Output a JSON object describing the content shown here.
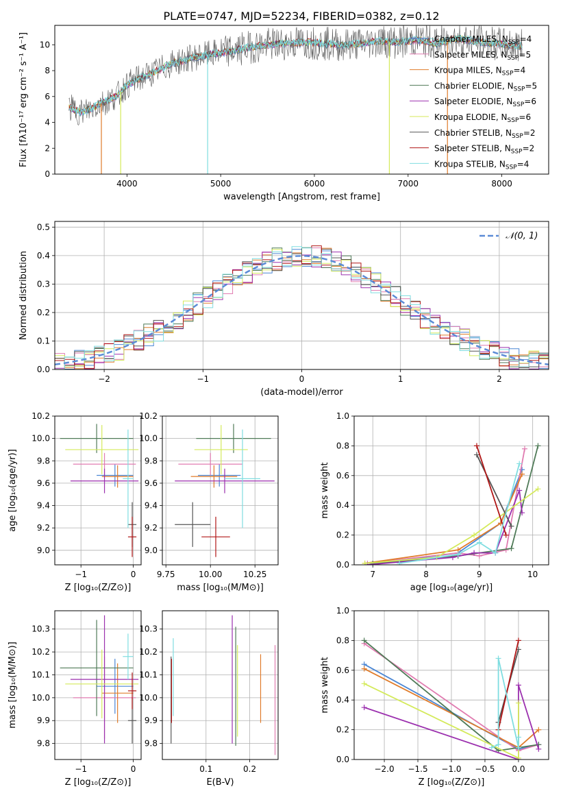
{
  "figure_title": "PLATE=0747, MJD=52234, FIBERID=0382, z=0.12",
  "series_names": [
    "Chabrier MILES",
    "Salpeter MILES",
    "Kroupa MILES",
    "Chabrier ELODIE",
    "Salpeter ELODIE",
    "Kroupa ELODIE",
    "Chabrier STELIB",
    "Salpeter STELIB",
    "Kroupa STELIB"
  ],
  "colors": {
    "Chabrier MILES": "#4a86d4",
    "Salpeter MILES": "#e07bb0",
    "Kroupa MILES": "#e07b2a",
    "Chabrier ELODIE": "#4f7a57",
    "Salpeter ELODIE": "#9b2fae",
    "Kroupa ELODIE": "#d4ea5a",
    "Chabrier STELIB": "#555555",
    "Salpeter STELIB": "#b01515",
    "Kroupa STELIB": "#7fdde0",
    "grid": "#b0b0b0",
    "normal_curve": "#5b8bd6"
  },
  "chart_data": [
    {
      "id": "spectrum",
      "type": "line",
      "xlabel": "wavelength [Angstrom, rest frame]",
      "ylabel": "Flux [fλ10⁻¹⁷ erg cm⁻² s⁻¹ A⁻¹]",
      "xlim": [
        3230,
        8500
      ],
      "ylim": [
        0,
        11.5
      ],
      "xticks": [
        4000,
        5000,
        6000,
        7000,
        8000
      ],
      "yticks": [
        0,
        2,
        4,
        6,
        8,
        10
      ],
      "grid": false,
      "legend_position": "right",
      "legend": [
        {
          "label": "Chabrier MILES, N",
          "sub": "SSP",
          "tail": "=4"
        },
        {
          "label": "Salpeter MILES, N",
          "sub": "SSP",
          "tail": "=5"
        },
        {
          "label": "Kroupa MILES, N",
          "sub": "SSP",
          "tail": "=4"
        },
        {
          "label": "Chabrier ELODIE, N",
          "sub": "SSP",
          "tail": "=5"
        },
        {
          "label": "Salpeter ELODIE, N",
          "sub": "SSP",
          "tail": "=6"
        },
        {
          "label": "Kroupa ELODIE, N",
          "sub": "SSP",
          "tail": "=6"
        },
        {
          "label": "Chabrier STELIB, N",
          "sub": "SSP",
          "tail": "=2"
        },
        {
          "label": "Salpeter STELIB, N",
          "sub": "SSP",
          "tail": "=2"
        },
        {
          "label": "Kroupa STELIB, N",
          "sub": "SSP",
          "tail": "=4"
        }
      ],
      "continuum": {
        "x": [
          3400,
          3500,
          3600,
          3700,
          3800,
          3900,
          4000,
          4100,
          4200,
          4300,
          4400,
          4500,
          4700,
          4900,
          5100,
          5300,
          5500,
          5700,
          5900,
          6100,
          6300,
          6500,
          6700,
          6900,
          7100,
          7300,
          7500,
          7700,
          7900,
          8100,
          8200
        ],
        "y": [
          5.1,
          4.8,
          5.0,
          5.4,
          5.7,
          6.1,
          6.9,
          7.3,
          7.6,
          7.9,
          8.3,
          8.6,
          9.0,
          9.3,
          9.5,
          9.8,
          10.0,
          10.1,
          10.2,
          10.1,
          10.0,
          10.1,
          10.3,
          10.2,
          10.4,
          10.1,
          10.5,
          10.3,
          10.1,
          10.0,
          9.9
        ]
      },
      "spikes": [
        {
          "x": 3727,
          "y": 0
        },
        {
          "x": 3933,
          "y": 0
        },
        {
          "x": 4861,
          "y": 0
        },
        {
          "x": 6800,
          "y": 0
        },
        {
          "x": 7420,
          "y": 0
        }
      ]
    },
    {
      "id": "residuals",
      "type": "histogram",
      "xlabel": "(data-model)/error",
      "ylabel": "Normed distribution",
      "xlim": [
        -2.5,
        2.5
      ],
      "ylim": [
        0,
        0.52
      ],
      "xticks": [
        -2,
        -1,
        0,
        1,
        2
      ],
      "yticks": [
        0.0,
        0.1,
        0.2,
        0.3,
        0.4,
        0.5
      ],
      "grid": true,
      "bin_width": 0.1,
      "bin_start": -2.5,
      "legend": [
        {
          "label": "𝒩(0, 1)",
          "style": "dashed"
        }
      ],
      "legend_position": "top-right"
    },
    {
      "id": "age_vs_Z",
      "type": "errorbar",
      "xlabel": "Z [log₁₀(Z/Z⊙)]",
      "ylabel": "age  [log₁₀(age/yr)]",
      "xlim": [
        -1.5,
        0.15
      ],
      "ylim": [
        8.87,
        10.2
      ],
      "xticks": [
        -1,
        0
      ],
      "yticks": [
        9.0,
        9.2,
        9.4,
        9.6,
        9.8,
        10.0,
        10.2
      ],
      "grid": true,
      "points": [
        {
          "series": "Chabrier MILES",
          "x": -0.35,
          "xerr": 0.35,
          "y": 9.67,
          "yerr": 0.1
        },
        {
          "series": "Salpeter MILES",
          "x": -0.55,
          "xerr": 0.6,
          "y": 9.77,
          "yerr": 0.1
        },
        {
          "series": "Kroupa MILES",
          "x": -0.3,
          "xerr": 0.3,
          "y": 9.66,
          "yerr": 0.1
        },
        {
          "series": "Chabrier ELODIE",
          "x": -0.7,
          "xerr": 0.7,
          "y": 10.0,
          "yerr": 0.13
        },
        {
          "series": "Salpeter ELODIE",
          "x": -0.55,
          "xerr": 0.65,
          "y": 9.62,
          "yerr": 0.11
        },
        {
          "series": "Kroupa ELODIE",
          "x": -0.6,
          "xerr": 0.7,
          "y": 9.9,
          "yerr": 0.22
        },
        {
          "series": "Chabrier STELIB",
          "x": -0.02,
          "xerr": 0.08,
          "y": 9.23,
          "yerr": 0.2
        },
        {
          "series": "Salpeter STELIB",
          "x": -0.02,
          "xerr": 0.08,
          "y": 9.12,
          "yerr": 0.18
        },
        {
          "series": "Kroupa STELIB",
          "x": -0.1,
          "xerr": 0.1,
          "y": 9.64,
          "yerr": 0.44
        }
      ]
    },
    {
      "id": "age_vs_mass",
      "type": "errorbar",
      "xlabel": "mass [log₁₀(M/M⊙)]",
      "ylabel": "",
      "xlim": [
        9.73,
        10.38
      ],
      "ylim": [
        8.87,
        10.2
      ],
      "xticks": [
        9.75,
        10.0,
        10.25
      ],
      "xticklabels": [
        "9.75",
        "10.00",
        "10.25"
      ],
      "yticks": [
        9.0,
        9.2,
        9.4,
        9.6,
        9.8,
        10.0,
        10.2
      ],
      "grid": true,
      "points": [
        {
          "series": "Chabrier MILES",
          "x": 10.05,
          "xerr": 0.12,
          "y": 9.67,
          "yerr": 0.1
        },
        {
          "series": "Salpeter MILES",
          "x": 10.0,
          "xerr": 0.18,
          "y": 9.77,
          "yerr": 0.1
        },
        {
          "series": "Kroupa MILES",
          "x": 10.02,
          "xerr": 0.13,
          "y": 9.66,
          "yerr": 0.1
        },
        {
          "series": "Chabrier ELODIE",
          "x": 10.13,
          "xerr": 0.21,
          "y": 10.0,
          "yerr": 0.13
        },
        {
          "series": "Salpeter ELODIE",
          "x": 10.08,
          "xerr": 0.28,
          "y": 9.62,
          "yerr": 0.11
        },
        {
          "series": "Kroupa ELODIE",
          "x": 10.06,
          "xerr": 0.15,
          "y": 9.9,
          "yerr": 0.22
        },
        {
          "series": "Chabrier STELIB",
          "x": 9.9,
          "xerr": 0.1,
          "y": 9.23,
          "yerr": 0.2
        },
        {
          "series": "Salpeter STELIB",
          "x": 10.03,
          "xerr": 0.08,
          "y": 9.12,
          "yerr": 0.18
        },
        {
          "series": "Kroupa STELIB",
          "x": 10.18,
          "xerr": 0.1,
          "y": 9.64,
          "yerr": 0.44
        }
      ]
    },
    {
      "id": "weight_vs_age",
      "type": "line",
      "xlabel": "age  [log₁₀(age/yr)]",
      "ylabel": "mass weight",
      "xlim": [
        6.65,
        10.3
      ],
      "ylim": [
        0,
        1.0
      ],
      "xticks": [
        7,
        8,
        9,
        10
      ],
      "yticks": [
        0.0,
        0.2,
        0.4,
        0.6,
        0.8,
        1.0
      ],
      "grid": true,
      "series": [
        {
          "name": "Chabrier MILES",
          "x": [
            6.9,
            8.6,
            9.4,
            9.8
          ],
          "y": [
            0.0,
            0.08,
            0.28,
            0.64
          ]
        },
        {
          "name": "Salpeter MILES",
          "x": [
            6.9,
            8.6,
            9.0,
            9.5,
            9.85
          ],
          "y": [
            0.01,
            0.08,
            0.06,
            0.1,
            0.78
          ]
        },
        {
          "name": "Kroupa MILES",
          "x": [
            6.85,
            8.6,
            9.4,
            9.8
          ],
          "y": [
            0.01,
            0.1,
            0.28,
            0.61
          ]
        },
        {
          "name": "Chabrier ELODIE",
          "x": [
            7.0,
            8.6,
            9.6,
            10.1
          ],
          "y": [
            0.01,
            0.06,
            0.11,
            0.8
          ]
        },
        {
          "name": "Salpeter ELODIE",
          "x": [
            6.9,
            8.5,
            8.9,
            9.3,
            9.75,
            9.8
          ],
          "y": [
            0.0,
            0.05,
            0.08,
            0.08,
            0.5,
            0.35
          ]
        },
        {
          "name": "Kroupa ELODIE",
          "x": [
            6.85,
            8.2,
            8.9,
            10.1
          ],
          "y": [
            0.01,
            0.05,
            0.2,
            0.51
          ]
        },
        {
          "name": "Chabrier STELIB",
          "x": [
            8.95,
            9.6
          ],
          "y": [
            0.74,
            0.26
          ]
        },
        {
          "name": "Salpeter STELIB",
          "x": [
            8.95,
            9.5
          ],
          "y": [
            0.8,
            0.2
          ]
        },
        {
          "name": "Kroupa STELIB",
          "x": [
            7.5,
            8.6,
            9.0,
            9.3,
            9.75
          ],
          "y": [
            0.01,
            0.07,
            0.15,
            0.08,
            0.68
          ]
        }
      ]
    },
    {
      "id": "mass_vs_Z",
      "type": "errorbar",
      "xlabel": "Z [log₁₀(Z/Z⊙)]",
      "ylabel": "mass [log₁₀(M/M⊙)]",
      "xlim": [
        -1.5,
        0.15
      ],
      "ylim": [
        9.73,
        10.38
      ],
      "xticks": [
        -1,
        0
      ],
      "yticks": [
        9.8,
        9.9,
        10.0,
        10.1,
        10.2,
        10.3
      ],
      "grid": true,
      "points": [
        {
          "series": "Chabrier MILES",
          "x": -0.35,
          "xerr": 0.35,
          "y": 10.05,
          "yerr": 0.12
        },
        {
          "series": "Salpeter MILES",
          "x": -0.55,
          "xerr": 0.6,
          "y": 10.0,
          "yerr": 0.18
        },
        {
          "series": "Kroupa MILES",
          "x": -0.3,
          "xerr": 0.3,
          "y": 10.02,
          "yerr": 0.13
        },
        {
          "series": "Chabrier ELODIE",
          "x": -0.7,
          "xerr": 0.7,
          "y": 10.13,
          "yerr": 0.21
        },
        {
          "series": "Salpeter ELODIE",
          "x": -0.55,
          "xerr": 0.65,
          "y": 10.08,
          "yerr": 0.28
        },
        {
          "series": "Kroupa ELODIE",
          "x": -0.6,
          "xerr": 0.7,
          "y": 10.06,
          "yerr": 0.15
        },
        {
          "series": "Chabrier STELIB",
          "x": -0.02,
          "xerr": 0.08,
          "y": 9.9,
          "yerr": 0.1
        },
        {
          "series": "Salpeter STELIB",
          "x": -0.02,
          "xerr": 0.08,
          "y": 10.03,
          "yerr": 0.08
        },
        {
          "series": "Kroupa STELIB",
          "x": -0.1,
          "xerr": 0.1,
          "y": 10.18,
          "yerr": 0.1
        }
      ]
    },
    {
      "id": "mass_vs_ebv",
      "type": "errorbar",
      "xlabel": "E(B-V)",
      "ylabel": "",
      "xlim": [
        0.0,
        0.265
      ],
      "ylim": [
        9.73,
        10.38
      ],
      "xticks": [
        0.1,
        0.2
      ],
      "yticks": [
        9.8,
        9.9,
        10.0,
        10.1,
        10.2,
        10.3
      ],
      "grid": true,
      "points": [
        {
          "series": "Chabrier STELIB",
          "x": 0.02,
          "xerr": 0,
          "y": 9.99,
          "yerr": 0.19
        },
        {
          "series": "Salpeter STELIB",
          "x": 0.021,
          "xerr": 0,
          "y": 10.03,
          "yerr": 0.14
        },
        {
          "series": "Kroupa STELIB",
          "x": 0.025,
          "xerr": 0,
          "y": 10.09,
          "yerr": 0.17
        },
        {
          "series": "Salpeter ELODIE",
          "x": 0.16,
          "xerr": 0,
          "y": 10.08,
          "yerr": 0.28
        },
        {
          "series": "Chabrier ELODIE",
          "x": 0.168,
          "xerr": 0,
          "y": 10.05,
          "yerr": 0.26
        },
        {
          "series": "Kroupa ELODIE",
          "x": 0.172,
          "xerr": 0,
          "y": 10.03,
          "yerr": 0.2
        },
        {
          "series": "Kroupa MILES",
          "x": 0.225,
          "xerr": 0,
          "y": 10.04,
          "yerr": 0.15
        },
        {
          "series": "Salpeter MILES",
          "x": 0.258,
          "xerr": 0,
          "y": 9.99,
          "yerr": 0.24
        }
      ]
    },
    {
      "id": "weight_vs_Z",
      "type": "line",
      "xlabel": "Z [log₁₀(Z/Z⊙)]",
      "ylabel": "mass weight",
      "xlim": [
        -2.45,
        0.45
      ],
      "ylim": [
        0,
        1.0
      ],
      "xticks": [
        -2.0,
        -1.5,
        -1.0,
        -0.5,
        0.0
      ],
      "xticklabels": [
        "−2.0",
        "−1.5",
        "−1.0",
        "−0.5",
        "0.0"
      ],
      "yticks": [
        0.0,
        0.2,
        0.4,
        0.6,
        0.8,
        1.0
      ],
      "grid": true,
      "series": [
        {
          "name": "Chabrier MILES",
          "x": [
            -2.3,
            0.0,
            0.3
          ],
          "y": [
            0.64,
            0.07,
            0.1
          ]
        },
        {
          "name": "Salpeter MILES",
          "x": [
            -2.3,
            0.0,
            0.3
          ],
          "y": [
            0.78,
            0.06,
            0.1
          ]
        },
        {
          "name": "Kroupa MILES",
          "x": [
            -2.3,
            0.0,
            0.3
          ],
          "y": [
            0.61,
            0.08,
            0.2
          ]
        },
        {
          "name": "Chabrier ELODIE",
          "x": [
            -2.3,
            -0.3,
            0.3
          ],
          "y": [
            0.8,
            0.06,
            0.1
          ]
        },
        {
          "name": "Salpeter ELODIE",
          "x": [
            -2.3,
            0.0,
            0.0,
            0.3
          ],
          "y": [
            0.35,
            0.0,
            0.5,
            0.07
          ]
        },
        {
          "name": "Kroupa ELODIE",
          "x": [
            -2.3,
            0.0,
            0.0
          ],
          "y": [
            0.51,
            0.01,
            0.38
          ]
        },
        {
          "name": "Chabrier STELIB",
          "x": [
            -0.3,
            0.0
          ],
          "y": [
            0.25,
            0.74
          ]
        },
        {
          "name": "Salpeter STELIB",
          "x": [
            -0.3,
            0.0
          ],
          "y": [
            0.2,
            0.8
          ]
        },
        {
          "name": "Kroupa STELIB",
          "x": [
            -0.4,
            -0.3,
            -0.3,
            0.0,
            0.0
          ],
          "y": [
            0.08,
            0.1,
            0.68,
            0.08,
            0.15
          ]
        }
      ]
    }
  ]
}
